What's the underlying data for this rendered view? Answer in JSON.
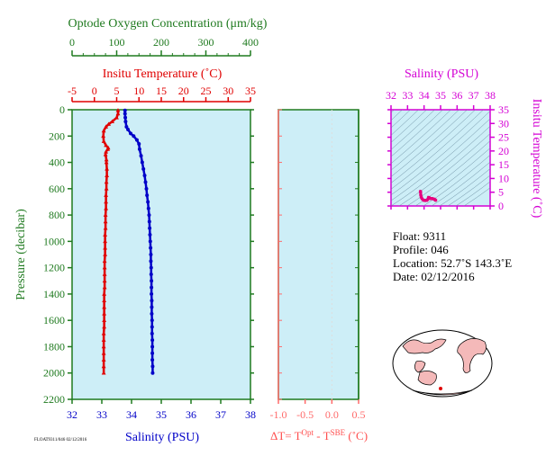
{
  "chart_data": [
    {
      "type": "line",
      "panel": "main-profile",
      "y_axis": {
        "label": "Pressure (decibar)",
        "lim": [
          0,
          2200
        ],
        "ticks": [
          0,
          200,
          400,
          600,
          800,
          1000,
          1200,
          1400,
          1600,
          1800,
          2000,
          2200
        ],
        "inverted": true
      },
      "x_axes": [
        {
          "label": "Optode Oxygen Concentration (μm/kg)",
          "lim": [
            0,
            400
          ],
          "ticks": [
            0,
            100,
            200,
            300,
            400
          ],
          "position": "top",
          "color": "#1f7a1f"
        },
        {
          "label": "Insitu Temperature (˚C)",
          "lim": [
            -5,
            35
          ],
          "ticks": [
            -5,
            0,
            5,
            10,
            15,
            20,
            25,
            30,
            35
          ],
          "position": "top",
          "color": "#e00000"
        },
        {
          "label": "Salinity (PSU)",
          "lim": [
            32,
            38
          ],
          "ticks": [
            32,
            33,
            34,
            35,
            36,
            37,
            38
          ],
          "position": "bottom",
          "color": "#0000c8"
        }
      ],
      "series": [
        {
          "name": "Insitu Temperature (˚C)",
          "color": "#e00000",
          "marker": "triangle",
          "pressure": [
            5,
            30,
            60,
            90,
            110,
            130,
            160,
            200,
            240,
            270,
            290,
            300,
            320,
            340,
            380,
            400,
            450,
            500,
            550,
            600,
            650,
            700,
            750,
            800,
            850,
            900,
            950,
            1000,
            1050,
            1100,
            1150,
            1200,
            1250,
            1300,
            1350,
            1400,
            1450,
            1500,
            1550,
            1600,
            1650,
            1700,
            1750,
            1800,
            1850,
            1900,
            1950,
            2000
          ],
          "values": [
            5.3,
            5.3,
            5.0,
            4.0,
            3.2,
            2.6,
            2.1,
            2.0,
            2.1,
            2.6,
            3.1,
            3.0,
            2.6,
            2.5,
            2.7,
            2.7,
            2.8,
            2.8,
            2.7,
            2.7,
            2.6,
            2.6,
            2.6,
            2.5,
            2.5,
            2.5,
            2.4,
            2.4,
            2.4,
            2.4,
            2.3,
            2.3,
            2.3,
            2.3,
            2.3,
            2.2,
            2.2,
            2.2,
            2.2,
            2.2,
            2.2,
            2.1,
            2.1,
            2.1,
            2.1,
            2.1,
            2.1,
            2.1
          ]
        },
        {
          "name": "Salinity (PSU)",
          "color": "#0000c8",
          "marker": "circle",
          "pressure": [
            5,
            30,
            60,
            90,
            130,
            150,
            180,
            200,
            230,
            260,
            300,
            350,
            400,
            450,
            500,
            550,
            600,
            650,
            700,
            750,
            800,
            850,
            900,
            950,
            1000,
            1050,
            1100,
            1150,
            1200,
            1250,
            1300,
            1350,
            1400,
            1450,
            1500,
            1550,
            1600,
            1650,
            1700,
            1750,
            1800,
            1850,
            1900,
            1950,
            2000
          ],
          "values": [
            33.78,
            33.78,
            33.79,
            33.8,
            33.83,
            33.88,
            33.97,
            34.07,
            34.18,
            34.25,
            34.27,
            34.32,
            34.36,
            34.4,
            34.44,
            34.47,
            34.5,
            34.52,
            34.55,
            34.57,
            34.59,
            34.6,
            34.61,
            34.62,
            34.63,
            34.64,
            34.65,
            34.65,
            34.66,
            34.66,
            34.67,
            34.67,
            34.67,
            34.68,
            34.68,
            34.68,
            34.69,
            34.69,
            34.69,
            34.7,
            34.7,
            34.7,
            34.7,
            34.71,
            34.71
          ]
        }
      ]
    },
    {
      "type": "line",
      "panel": "delta-t",
      "xlabel": "ΔT= T",
      "xlabel_parts": {
        "sup1": "Opt",
        "mid": " - T",
        "sup2": "SBE",
        "tail": " (˚C)"
      },
      "xlim": [
        -1.0,
        0.5
      ],
      "xticks": [
        "-1.0",
        "-0.5",
        "0.0",
        "0.5"
      ],
      "ylim": [
        0,
        2200
      ],
      "series": []
    },
    {
      "type": "scatter",
      "panel": "ts-diagram",
      "title": "Salinity (PSU)",
      "xlim": [
        32,
        38
      ],
      "xticks": [
        32,
        33,
        34,
        35,
        36,
        37,
        38
      ],
      "ylabel": "Insitu Temperature (˚C)",
      "ylim": [
        0,
        35
      ],
      "yticks": [
        0,
        5,
        10,
        15,
        20,
        25,
        30,
        35
      ],
      "series": [
        {
          "color": "#e6007e",
          "x": [
            33.78,
            33.79,
            33.8,
            33.83,
            33.88,
            33.97,
            34.07,
            34.18,
            34.25,
            34.27,
            34.32,
            34.4,
            34.5,
            34.6,
            34.66,
            34.7
          ],
          "y": [
            5.3,
            5.0,
            4.0,
            3.2,
            2.6,
            2.1,
            2.0,
            2.1,
            2.6,
            3.1,
            3.0,
            2.7,
            2.7,
            2.5,
            2.3,
            2.1
          ]
        }
      ]
    }
  ],
  "info": {
    "float": "Float:  9311",
    "profile": "Profile:  046",
    "location": "Location:  52.7˚S  143.3˚E",
    "date": "Date:  02/12/2016"
  },
  "colors": {
    "panel_bg": "#cdeef7",
    "oxygen": "#1f7a1f",
    "temperature": "#e00000",
    "salinity": "#0000c8",
    "delta": "#ff6a6a",
    "ts": "#d400d4"
  },
  "footnote": "FLOAT9311/046 02/12/2016"
}
